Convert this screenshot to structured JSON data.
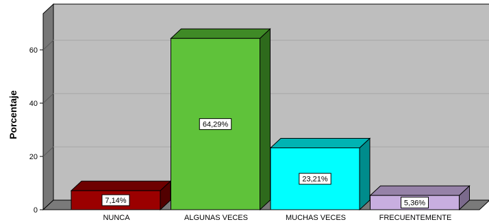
{
  "chart_data": {
    "type": "bar",
    "categories": [
      "NUNCA",
      "ALGUNAS VECES",
      "MUCHAS VECES",
      "FRECUENTEMENTE"
    ],
    "values": [
      7.14,
      64.29,
      23.21,
      5.36
    ],
    "data_labels": [
      "7,14%",
      "64,29%",
      "23,21%",
      "5,36%"
    ],
    "title": "",
    "xlabel": "",
    "ylabel": "Porcentaje",
    "ylim": [
      0,
      70
    ],
    "yticks": [
      0,
      20,
      40,
      60
    ],
    "ytick_labels": [
      "0",
      "20",
      "40",
      "60"
    ],
    "grid": true,
    "style": "3d",
    "colors": {
      "bars": [
        "#9b0000",
        "#5fc23a",
        "#00ffff",
        "#c8aee0"
      ],
      "bar_tops": [
        "#6e0000",
        "#3f8a26",
        "#00b3b3",
        "#9682a8"
      ],
      "bar_sides": [
        "#520000",
        "#2e6a1c",
        "#008c8c",
        "#7b6a8c"
      ],
      "plot_back": "#bebebe",
      "plot_side_wall": "#777777",
      "floor": "#7a7a7a",
      "gridline": "#a6a6a6"
    }
  }
}
